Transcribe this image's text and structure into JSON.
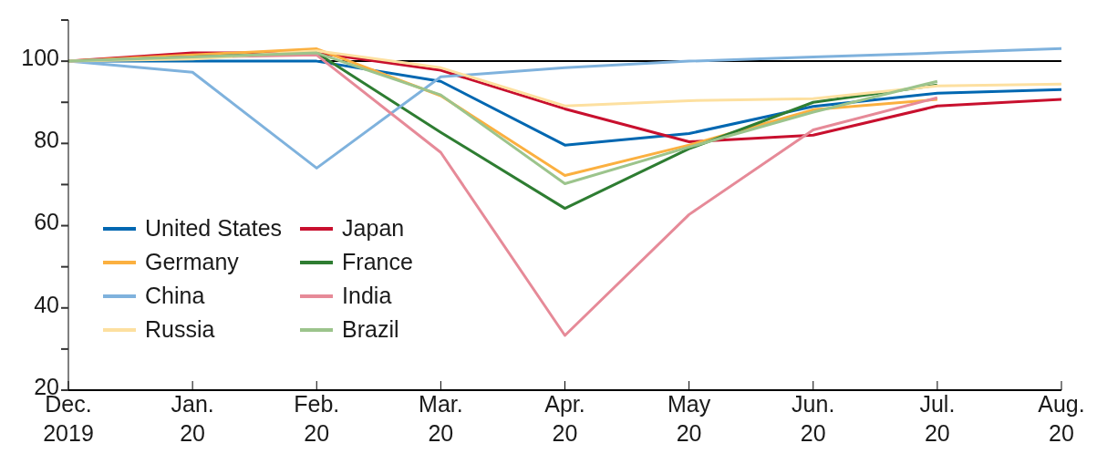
{
  "chart_data": {
    "type": "line",
    "categories": [
      "Dec. 2019",
      "Jan. 20",
      "Feb. 20",
      "Mar. 20",
      "Apr. 20",
      "May 20",
      "Jun. 20",
      "Jul. 20",
      "Aug. 20"
    ],
    "series": [
      {
        "name": "United States",
        "color": "#0067b1",
        "values": [
          100,
          100,
          100,
          95.1,
          79.6,
          82.4,
          89,
          92.2,
          93.1
        ]
      },
      {
        "name": "Japan",
        "color": "#c8102e",
        "values": [
          100,
          102,
          102,
          97.8,
          88.4,
          80.4,
          82,
          89.1,
          90.7
        ]
      },
      {
        "name": "Germany",
        "color": "#fbb040",
        "values": [
          100,
          101.5,
          103,
          91.6,
          72.2,
          79.6,
          88.2,
          90.7,
          null
        ]
      },
      {
        "name": "France",
        "color": "#2e7d32",
        "values": [
          100,
          101,
          102,
          82.7,
          64.2,
          78.7,
          90,
          94.2,
          null
        ]
      },
      {
        "name": "China",
        "color": "#7fb2dd",
        "values": [
          100,
          97.3,
          74,
          96.2,
          98.4,
          100,
          101,
          102,
          103.1
        ]
      },
      {
        "name": "India",
        "color": "#e68a98",
        "values": [
          100,
          101,
          101.5,
          77.8,
          33.3,
          62.7,
          83.3,
          91.1,
          null
        ]
      },
      {
        "name": "Russia",
        "color": "#fde0a0",
        "values": [
          100,
          100.5,
          102.5,
          98.4,
          89.1,
          90.4,
          90.9,
          94,
          94.4
        ]
      },
      {
        "name": "Brazil",
        "color": "#9cc48c",
        "values": [
          100,
          101,
          102,
          91.8,
          70.2,
          79.1,
          87.6,
          95.1,
          null
        ]
      }
    ],
    "ylim": [
      20,
      110
    ],
    "yticks": [
      20,
      {
        "value": 30,
        "label": null
      },
      40,
      {
        "value": 50,
        "label": null
      },
      60,
      {
        "value": 70,
        "label": null
      },
      80,
      {
        "value": 90,
        "label": null
      },
      100,
      {
        "value": 110,
        "label": null
      }
    ],
    "ref_lines": [
      {
        "axis": "y",
        "value": 100,
        "color": "#000000"
      }
    ],
    "grid": false,
    "legend": "left",
    "marker": "none",
    "line_style": "solid"
  }
}
